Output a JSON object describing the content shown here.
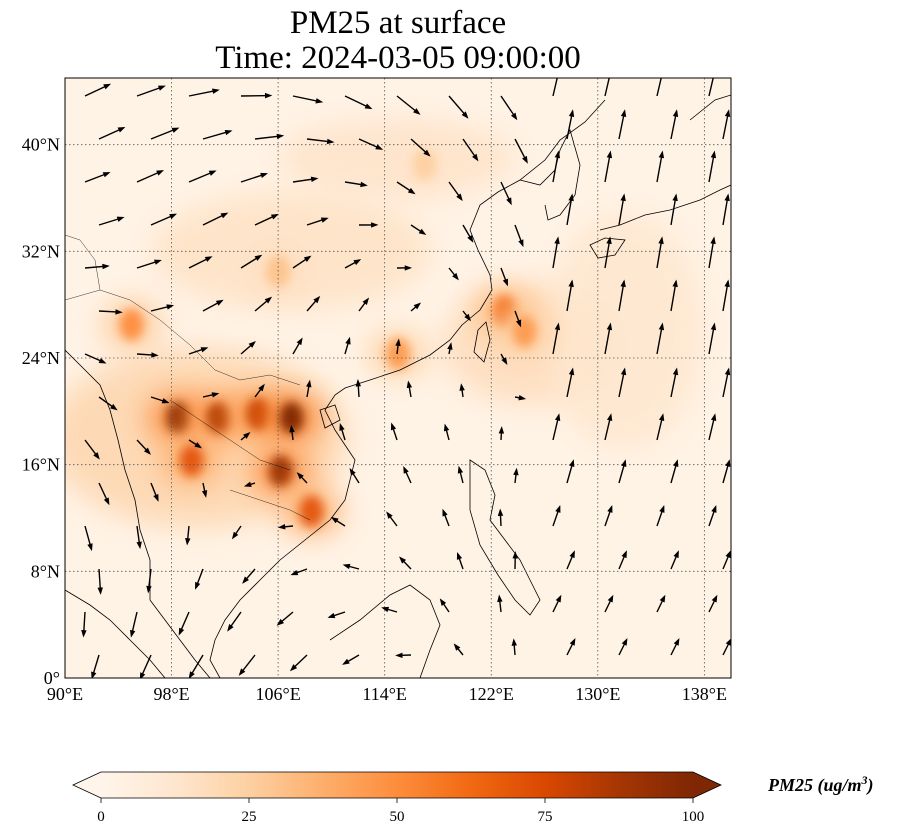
{
  "title": {
    "line1": "PM25 at surface",
    "line2": "Time: 2024-03-05 09:00:00"
  },
  "map": {
    "lon_range": [
      90,
      140
    ],
    "lat_range": [
      0,
      45
    ],
    "lon_ticks": [
      90,
      98,
      106,
      114,
      122,
      130,
      138
    ],
    "lat_ticks": [
      0,
      8,
      16,
      24,
      32,
      40
    ],
    "lon_labels": [
      "90°E",
      "98°E",
      "106°E",
      "114°E",
      "122°E",
      "130°E",
      "138°E"
    ],
    "lat_labels": [
      "0°",
      "8°N",
      "16°N",
      "24°N",
      "32°N",
      "40°N"
    ],
    "gridlines": true,
    "field": "PM25",
    "hotspots": [
      {
        "lon": 98.5,
        "lat": 19.5,
        "value": 95
      },
      {
        "lon": 101.5,
        "lat": 19.5,
        "value": 85
      },
      {
        "lon": 104.5,
        "lat": 19.8,
        "value": 80
      },
      {
        "lon": 107.0,
        "lat": 19.5,
        "value": 100
      },
      {
        "lon": 106.2,
        "lat": 15.5,
        "value": 90
      },
      {
        "lon": 108.5,
        "lat": 12.5,
        "value": 70
      },
      {
        "lon": 99.5,
        "lat": 16.3,
        "value": 70
      },
      {
        "lon": 123.0,
        "lat": 27.5,
        "value": 60
      },
      {
        "lon": 124.5,
        "lat": 26.0,
        "value": 45
      },
      {
        "lon": 115.0,
        "lat": 24.3,
        "value": 45
      },
      {
        "lon": 95.0,
        "lat": 26.5,
        "value": 50
      },
      {
        "lon": 106.0,
        "lat": 30.5,
        "value": 30
      },
      {
        "lon": 117.0,
        "lat": 38.5,
        "value": 25
      }
    ]
  },
  "colorbar": {
    "ticks": [
      0,
      25,
      50,
      75,
      100
    ],
    "tick_labels": [
      "0",
      "25",
      "50",
      "75",
      "100"
    ],
    "label_base": "PM25 (ug/m",
    "label_sup": "3",
    "label_end": ")",
    "colors": [
      "#fff5eb",
      "#fee6ce",
      "#fdd0a2",
      "#fdae6b",
      "#fd8d3c",
      "#f16913",
      "#d94801",
      "#a63603",
      "#7f2704"
    ],
    "extend": "both"
  },
  "wind_field": {
    "type": "quiver",
    "color": "#000000"
  }
}
